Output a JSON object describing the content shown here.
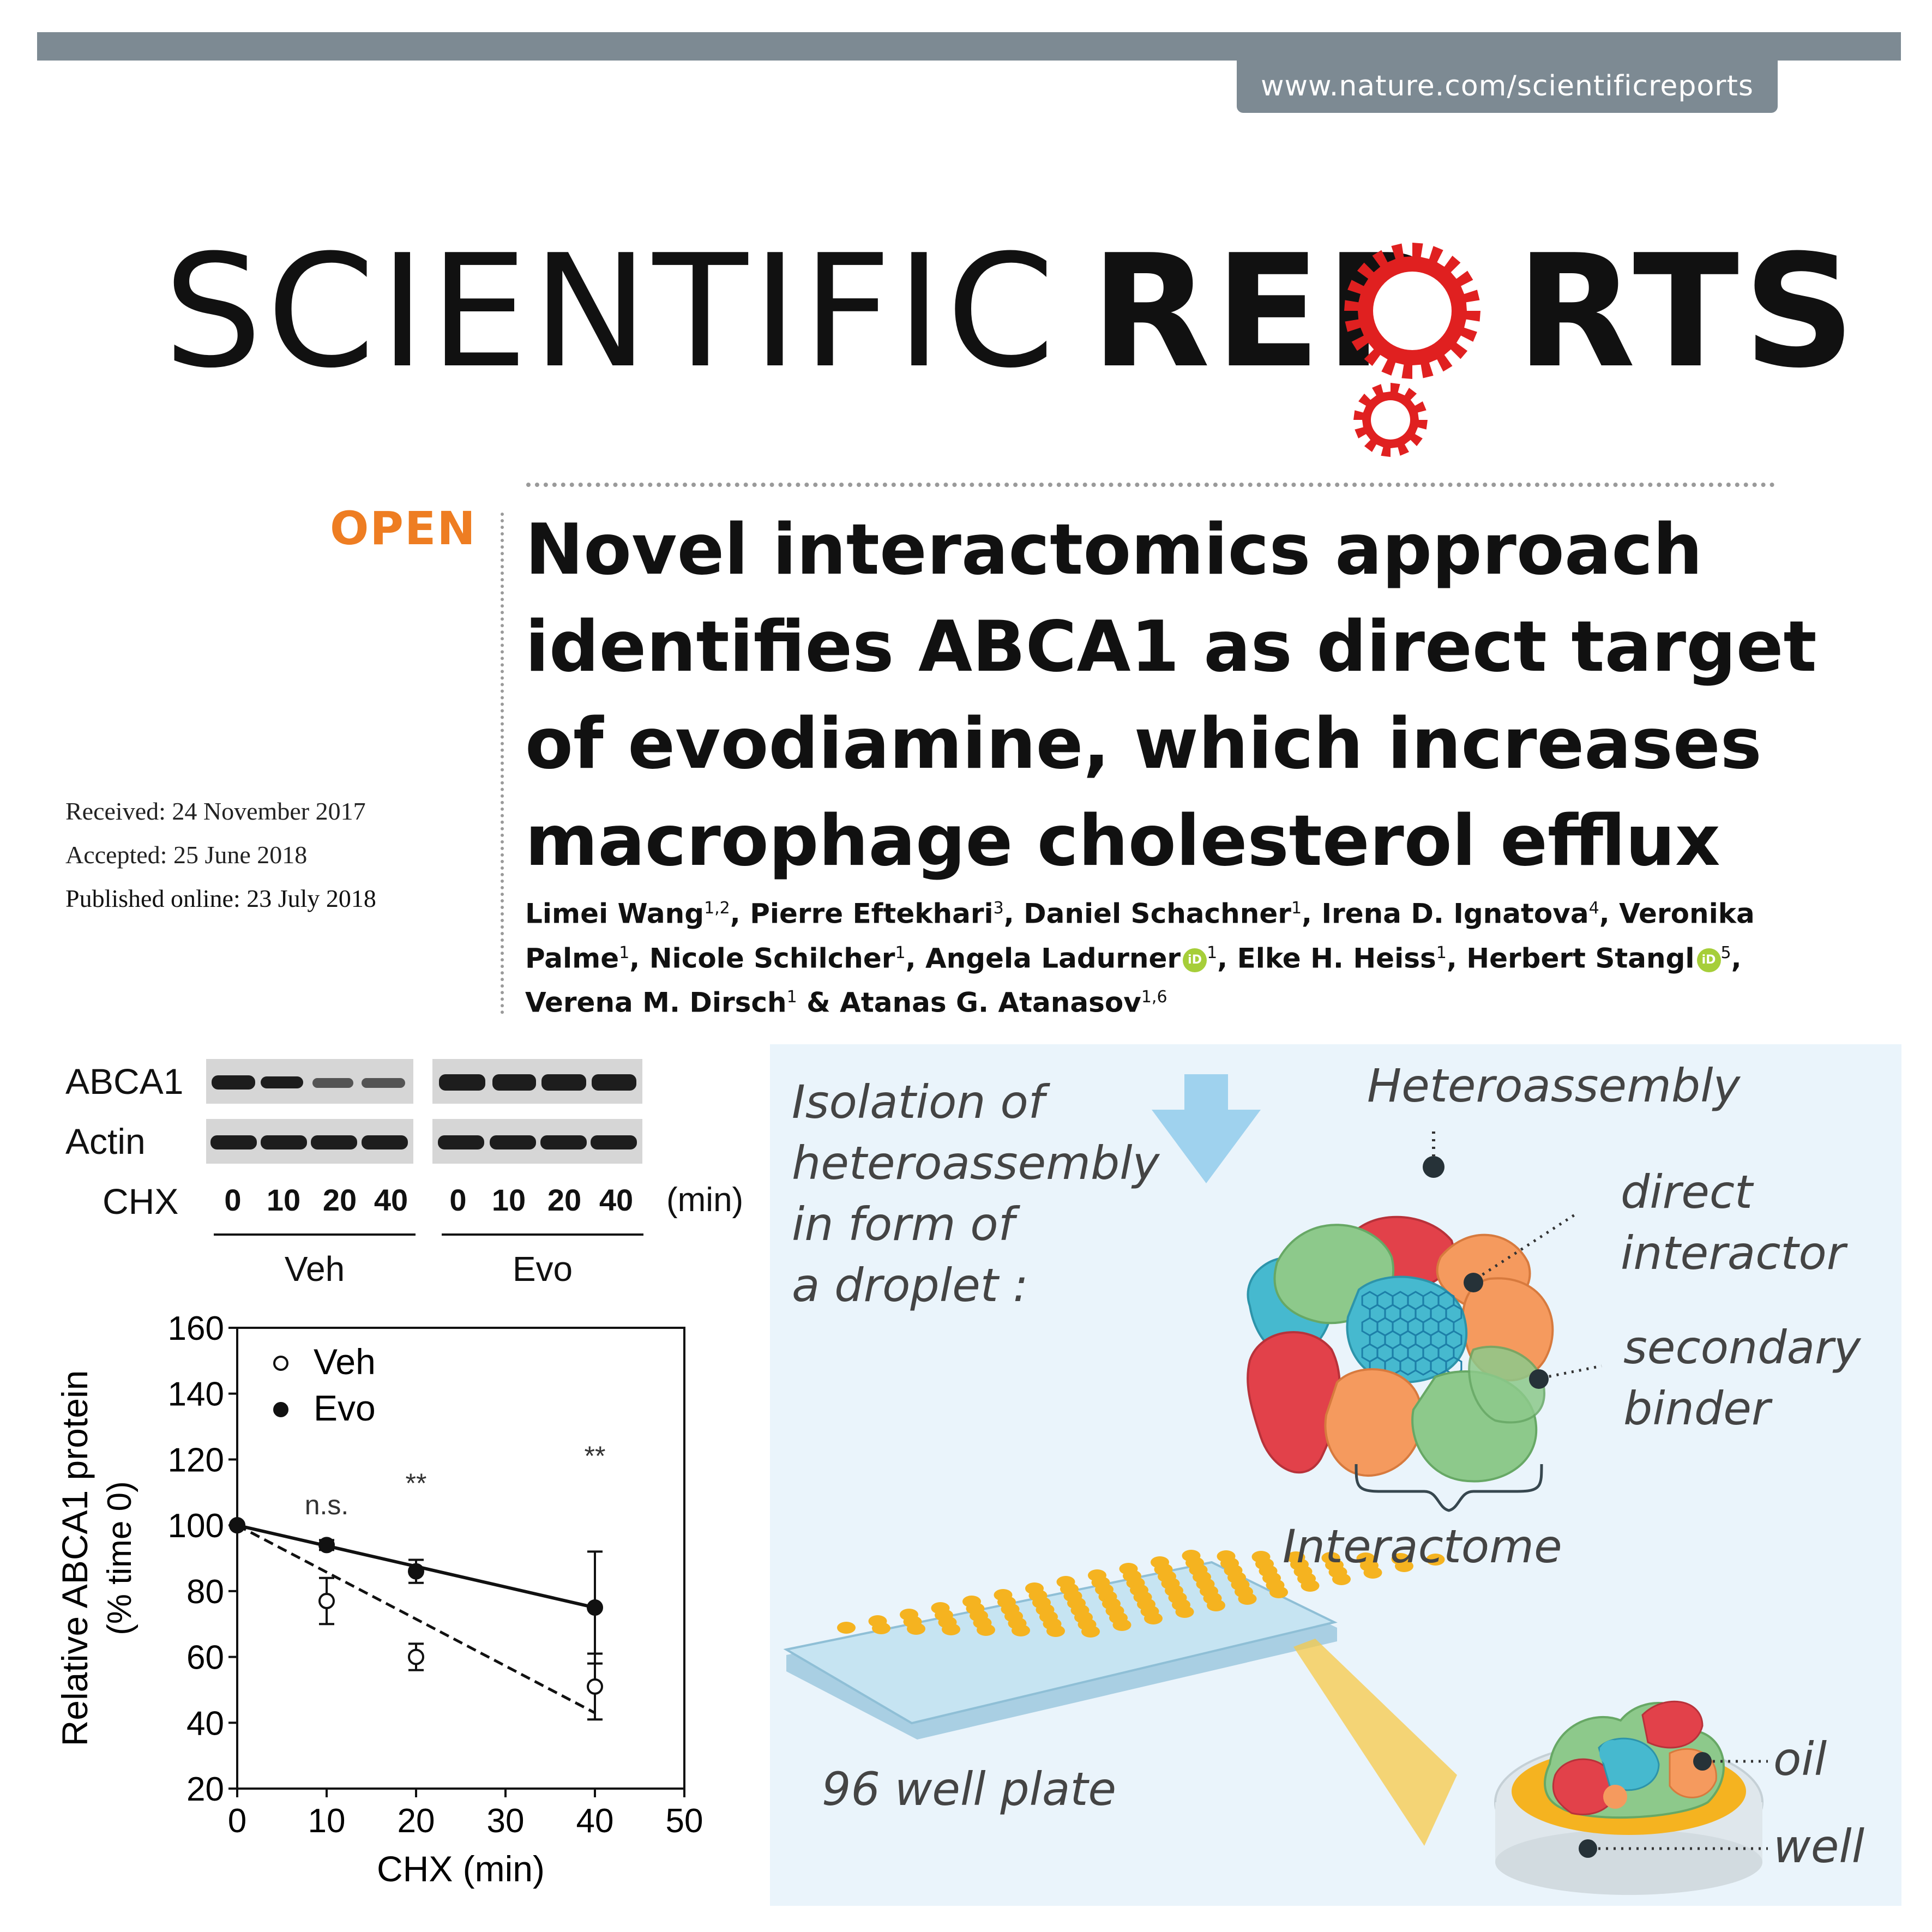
{
  "header": {
    "url": "www.nature.com/scientificreports",
    "logo_left": "SCIENTIFIC",
    "logo_right_a": "REP",
    "logo_right_b": "RTS"
  },
  "article": {
    "open_label": "OPEN",
    "title_lines": [
      "Novel interactomics approach",
      "identifies ABCA1 as direct target",
      "of evodiamine, which increases",
      "macrophage cholesterol efflux"
    ],
    "received": "Received: 24 November 2017",
    "accepted": "Accepted: 25 June 2018",
    "published": "Published online: 23 July 2018",
    "authors": [
      {
        "name": "Limei Wang",
        "aff": "1,2",
        "orcid": false
      },
      {
        "name": "Pierre Eftekhari",
        "aff": "3",
        "orcid": false
      },
      {
        "name": "Daniel Schachner",
        "aff": "1",
        "orcid": false
      },
      {
        "name": "Irena D. Ignatova",
        "aff": "4",
        "orcid": false
      },
      {
        "name": "Veronika Palme",
        "aff": "1",
        "orcid": false
      },
      {
        "name": "Nicole Schilcher",
        "aff": "1",
        "orcid": false
      },
      {
        "name": "Angela Ladurner",
        "aff": "1",
        "orcid": true
      },
      {
        "name": "Elke H. Heiss",
        "aff": "1",
        "orcid": false
      },
      {
        "name": "Herbert Stangl",
        "aff": "5",
        "orcid": true
      },
      {
        "name": "Verena M. Dirsch",
        "aff": "1",
        "orcid": false
      },
      {
        "name": "Atanas G. Atanasov",
        "aff": "1,6",
        "orcid": false
      }
    ],
    "orcid_glyph": "iD",
    "and_text": "&"
  },
  "blot": {
    "row_labels": [
      "ABCA1",
      "Actin",
      "CHX"
    ],
    "lanes": [
      "0",
      "10",
      "20",
      "40",
      "0",
      "10",
      "20",
      "40"
    ],
    "unit": "(min)",
    "groups": [
      "Veh",
      "Evo"
    ]
  },
  "chart_data": {
    "type": "scatter",
    "xlabel": "CHX (min)",
    "ylabel": "Relative ABCA1 protein",
    "ylabel2": "(% time 0)",
    "xlim": [
      0,
      50
    ],
    "ylim": [
      20,
      160
    ],
    "xticks": [
      0,
      10,
      20,
      30,
      40,
      50
    ],
    "yticks": [
      20,
      40,
      60,
      80,
      100,
      120,
      140,
      160
    ],
    "legend_position": "top-left",
    "series": [
      {
        "name": "Veh",
        "marker": "open-circle",
        "line": "dashed",
        "x": [
          0,
          10,
          20,
          40
        ],
        "y": [
          100,
          77,
          60,
          51
        ],
        "err": [
          0,
          7,
          4,
          10
        ],
        "fit": [
          [
            0,
            100
          ],
          [
            40,
            43
          ]
        ]
      },
      {
        "name": "Evo",
        "marker": "filled-circle",
        "line": "solid",
        "x": [
          0,
          10,
          20,
          40
        ],
        "y": [
          100,
          94,
          86,
          75
        ],
        "err": [
          0,
          1.5,
          3.5,
          17
        ],
        "fit": [
          [
            0,
            100
          ],
          [
            40,
            75
          ]
        ]
      }
    ],
    "annotations": [
      {
        "x": 10,
        "text": "n.s."
      },
      {
        "x": 20,
        "text": "**"
      },
      {
        "x": 40,
        "text": "**"
      }
    ]
  },
  "infographic": {
    "isolation_lines": [
      "Isolation of",
      "heteroassembly",
      "in form of",
      "a droplet :"
    ],
    "heteroassembly": "Heteroassembly",
    "direct_interactor": [
      "direct",
      "interactor"
    ],
    "secondary_binder": [
      "secondary",
      "binder"
    ],
    "interactome": "Interactome",
    "plate_label": "96 well plate",
    "oil": "oil",
    "well": "well",
    "colors": {
      "background": "#eaf4fb",
      "red": "#e2414a",
      "green": "#8dc98b",
      "orange": "#f59a5e",
      "blue": "#46b9cf",
      "well_dot": "#f5b320",
      "plate": "#bfe0ef",
      "arrow": "#9fd2ee"
    }
  }
}
